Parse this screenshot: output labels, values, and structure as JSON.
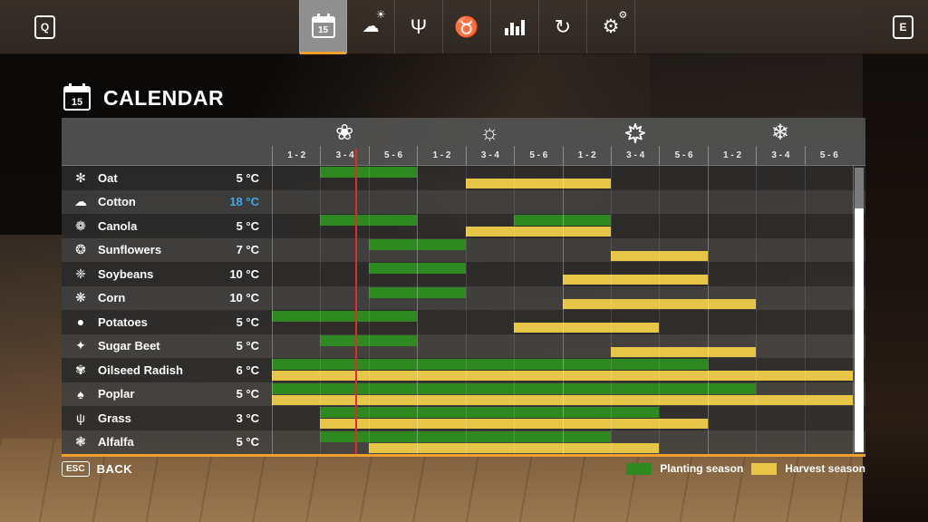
{
  "topbar": {
    "left_key": "Q",
    "right_key": "E",
    "calendar_day": "15",
    "tabs": [
      {
        "name": "calendar",
        "selected": true
      },
      {
        "name": "weather",
        "selected": false
      },
      {
        "name": "crops",
        "selected": false
      },
      {
        "name": "animals",
        "selected": false
      },
      {
        "name": "statistics",
        "selected": false
      },
      {
        "name": "economy",
        "selected": false
      },
      {
        "name": "settings",
        "selected": false
      }
    ]
  },
  "header": {
    "title": "CALENDAR",
    "icon_day": "15"
  },
  "calendar": {
    "seasons": [
      {
        "name": "spring",
        "glyph": "❀"
      },
      {
        "name": "summer",
        "glyph": "☼"
      },
      {
        "name": "autumn",
        "glyph": "maple-leaf-svg"
      },
      {
        "name": "winter",
        "glyph": "❄"
      }
    ],
    "period_labels": [
      "1 - 2",
      "3 - 4",
      "5 - 6"
    ],
    "columns_total": 12,
    "current_date_col": 1.73,
    "current_line_color": "#cf342a",
    "planting_color": "#2e8a20",
    "harvest_color": "#e7c647",
    "crops": [
      {
        "name": "Oat",
        "temp": "5 °C",
        "temp_color": "#ffffff",
        "icon": "✻",
        "plant": [
          [
            1,
            3
          ]
        ],
        "harvest": [
          [
            4,
            7
          ]
        ]
      },
      {
        "name": "Cotton",
        "temp": "18 °C",
        "temp_color": "#3fa9e8",
        "icon": "☁",
        "plant": [],
        "harvest": []
      },
      {
        "name": "Canola",
        "temp": "5 °C",
        "temp_color": "#ffffff",
        "icon": "❁",
        "plant": [
          [
            1,
            3
          ],
          [
            5,
            7
          ]
        ],
        "harvest": [
          [
            4,
            7
          ]
        ]
      },
      {
        "name": "Sunflowers",
        "temp": "7 °C",
        "temp_color": "#ffffff",
        "icon": "❂",
        "plant": [
          [
            2,
            4
          ]
        ],
        "harvest": [
          [
            7,
            9
          ]
        ]
      },
      {
        "name": "Soybeans",
        "temp": "10 °C",
        "temp_color": "#ffffff",
        "icon": "❈",
        "plant": [
          [
            2,
            4
          ]
        ],
        "harvest": [
          [
            6,
            9
          ]
        ]
      },
      {
        "name": "Corn",
        "temp": "10 °C",
        "temp_color": "#ffffff",
        "icon": "❋",
        "plant": [
          [
            2,
            4
          ]
        ],
        "harvest": [
          [
            6,
            10
          ]
        ]
      },
      {
        "name": "Potatoes",
        "temp": "5 °C",
        "temp_color": "#ffffff",
        "icon": "●",
        "plant": [
          [
            0,
            3
          ]
        ],
        "harvest": [
          [
            5,
            8
          ]
        ]
      },
      {
        "name": "Sugar Beet",
        "temp": "5 °C",
        "temp_color": "#ffffff",
        "icon": "✦",
        "plant": [
          [
            1,
            3
          ]
        ],
        "harvest": [
          [
            7,
            10
          ]
        ]
      },
      {
        "name": "Oilseed Radish",
        "temp": "6 °C",
        "temp_color": "#ffffff",
        "icon": "✾",
        "plant": [
          [
            0,
            9
          ]
        ],
        "harvest": [
          [
            0,
            12
          ]
        ]
      },
      {
        "name": "Poplar",
        "temp": "5 °C",
        "temp_color": "#ffffff",
        "icon": "♠",
        "plant": [
          [
            0,
            10
          ]
        ],
        "harvest": [
          [
            0,
            12
          ]
        ]
      },
      {
        "name": "Grass",
        "temp": "3 °C",
        "temp_color": "#ffffff",
        "icon": "ψ",
        "plant": [
          [
            1,
            8
          ]
        ],
        "harvest": [
          [
            1,
            9
          ]
        ]
      },
      {
        "name": "Alfalfa",
        "temp": "5 °C",
        "temp_color": "#ffffff",
        "icon": "❃",
        "plant": [
          [
            1,
            7
          ]
        ],
        "harvest": [
          [
            2,
            8
          ]
        ]
      }
    ]
  },
  "footer": {
    "back_key": "ESC",
    "back_label": "BACK",
    "legend": [
      {
        "label": "Planting season",
        "color": "#2e8a20"
      },
      {
        "label": "Harvest season",
        "color": "#e7c647"
      }
    ]
  }
}
